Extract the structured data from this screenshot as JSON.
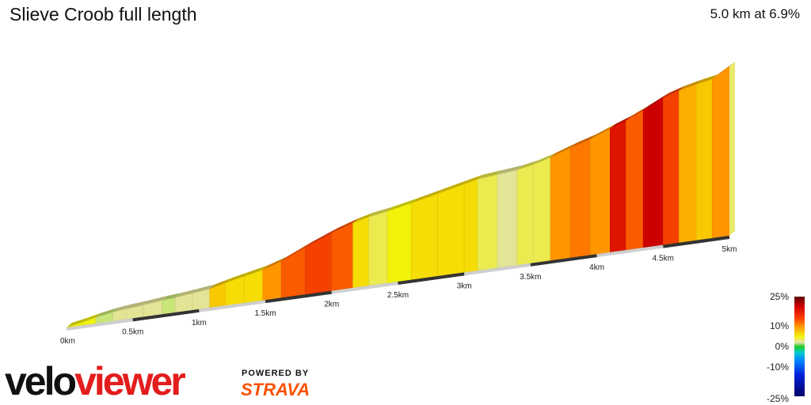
{
  "title": "Slieve Croob full length",
  "summary": "5.0 km at 6.9%",
  "brand": {
    "velo": "velo",
    "viewer": "viewer",
    "powered_by": "POWERED BY",
    "strava": "STRAVA"
  },
  "gradient_scale": {
    "labels": [
      "25%",
      "10%",
      "0%",
      "-10%",
      "-25%"
    ],
    "values": [
      25,
      10,
      0,
      -10,
      -25
    ]
  },
  "chart_data": {
    "type": "area",
    "title": "Slieve Croob full length",
    "xlabel": "",
    "ylabel": "",
    "x_ticks": [
      "0km",
      "0.5km",
      "1km",
      "1.5km",
      "2km",
      "2.5km",
      "3km",
      "3.5km",
      "4km",
      "4.5km",
      "5km"
    ],
    "x_tick_values": [
      0,
      0.5,
      1,
      1.5,
      2,
      2.5,
      3,
      3.5,
      4,
      4.5,
      5
    ],
    "xlim": [
      0,
      5
    ],
    "series": [
      {
        "distance_km": [
          0.0,
          0.12,
          0.22,
          0.35,
          0.45,
          0.58,
          0.72,
          0.82,
          0.95,
          1.08,
          1.2,
          1.34,
          1.48,
          1.62,
          1.8,
          2.0,
          2.16,
          2.28,
          2.42,
          2.6,
          2.8,
          3.0,
          3.1,
          3.25,
          3.4,
          3.52,
          3.65,
          3.8,
          3.95,
          4.1,
          4.22,
          4.35,
          4.5,
          4.62,
          4.75,
          4.87,
          5.0
        ],
        "elevation_rel_m": [
          0,
          6,
          12,
          18,
          21,
          24,
          28,
          30,
          34,
          38,
          46,
          54,
          62,
          74,
          96,
          118,
          132,
          140,
          146,
          156,
          168,
          180,
          186,
          190,
          194,
          200,
          210,
          224,
          236,
          252,
          264,
          280,
          300,
          310,
          318,
          324,
          345
        ],
        "gradient_pct": [
          5,
          5,
          2,
          3,
          3,
          3,
          2,
          3,
          3,
          7,
          6,
          6,
          9,
          11,
          12,
          11,
          6,
          4,
          5,
          6,
          6,
          6,
          4,
          3,
          4,
          4,
          9,
          10,
          9,
          14,
          11,
          15,
          12,
          8,
          7,
          9,
          6
        ]
      }
    ],
    "grid": false,
    "legend": "bottom-right"
  }
}
